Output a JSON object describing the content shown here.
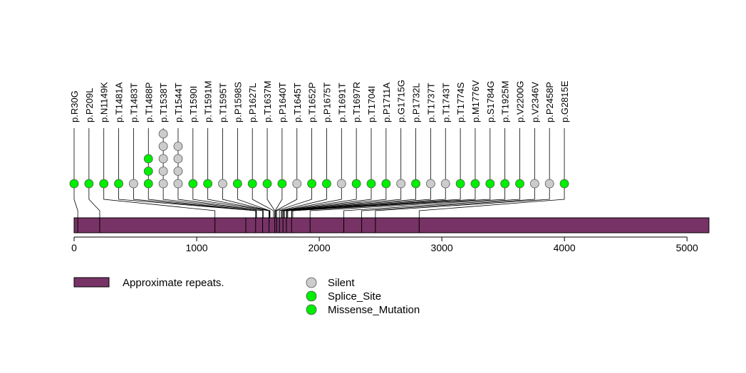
{
  "chart_data": {
    "type": "lollipop",
    "protein_length": 5179,
    "xlim": [
      0,
      5179
    ],
    "x_ticks": [
      0,
      1000,
      2000,
      3000,
      4000,
      5000
    ],
    "domain": {
      "name": "Approximate repeats.",
      "start": 0,
      "end": 5179,
      "color": "#773366"
    },
    "segment_boundaries": [
      30,
      209,
      1149,
      1401,
      1481,
      1538,
      1590,
      1637,
      1652,
      1675,
      1704,
      1732,
      1774,
      1925,
      2200,
      2346,
      2458,
      2815
    ],
    "mutation_types": [
      {
        "name": "Silent",
        "color": "#cccccc"
      },
      {
        "name": "Splice_Site",
        "color": "#00ee00"
      },
      {
        "name": "Missense_Mutation",
        "color": "#00ee00"
      }
    ],
    "mutations": [
      {
        "label": "p.R30G",
        "position": 30,
        "stack": [
          "Missense_Mutation"
        ]
      },
      {
        "label": "p.P209L",
        "position": 209,
        "stack": [
          "Missense_Mutation"
        ]
      },
      {
        "label": "p.N1149K",
        "position": 1149,
        "stack": [
          "Missense_Mutation"
        ]
      },
      {
        "label": "p.T1481A",
        "position": 1481,
        "stack": [
          "Missense_Mutation"
        ]
      },
      {
        "label": "p.T1483T",
        "position": 1483,
        "stack": [
          "Silent"
        ]
      },
      {
        "label": "p.T1488P",
        "position": 1488,
        "stack": [
          "Missense_Mutation",
          "Missense_Mutation",
          "Missense_Mutation"
        ]
      },
      {
        "label": "p.T1538T",
        "position": 1538,
        "stack": [
          "Silent",
          "Silent",
          "Silent",
          "Silent",
          "Silent"
        ]
      },
      {
        "label": "p.T1544T",
        "position": 1544,
        "stack": [
          "Silent",
          "Silent",
          "Silent",
          "Silent"
        ]
      },
      {
        "label": "p.T1590I",
        "position": 1590,
        "stack": [
          "Missense_Mutation"
        ]
      },
      {
        "label": "p.T1591M",
        "position": 1591,
        "stack": [
          "Missense_Mutation"
        ]
      },
      {
        "label": "p.T1595T",
        "position": 1595,
        "stack": [
          "Silent"
        ]
      },
      {
        "label": "p.P1598S",
        "position": 1598,
        "stack": [
          "Missense_Mutation"
        ]
      },
      {
        "label": "p.P1627L",
        "position": 1627,
        "stack": [
          "Missense_Mutation"
        ]
      },
      {
        "label": "p.T1637M",
        "position": 1637,
        "stack": [
          "Missense_Mutation"
        ]
      },
      {
        "label": "p.P1640T",
        "position": 1640,
        "stack": [
          "Missense_Mutation"
        ]
      },
      {
        "label": "p.T1645T",
        "position": 1645,
        "stack": [
          "Silent"
        ]
      },
      {
        "label": "p.T1652P",
        "position": 1652,
        "stack": [
          "Missense_Mutation"
        ]
      },
      {
        "label": "p.P1675T",
        "position": 1675,
        "stack": [
          "Missense_Mutation"
        ]
      },
      {
        "label": "p.T1691T",
        "position": 1691,
        "stack": [
          "Silent"
        ]
      },
      {
        "label": "p.T1697R",
        "position": 1697,
        "stack": [
          "Missense_Mutation"
        ]
      },
      {
        "label": "p.T1704I",
        "position": 1704,
        "stack": [
          "Missense_Mutation"
        ]
      },
      {
        "label": "p.P1711A",
        "position": 1711,
        "stack": [
          "Missense_Mutation"
        ]
      },
      {
        "label": "p.G1715G",
        "position": 1715,
        "stack": [
          "Silent"
        ]
      },
      {
        "label": "p.P1732L",
        "position": 1732,
        "stack": [
          "Missense_Mutation"
        ]
      },
      {
        "label": "p.T1737T",
        "position": 1737,
        "stack": [
          "Silent"
        ]
      },
      {
        "label": "p.T1743T",
        "position": 1743,
        "stack": [
          "Silent"
        ]
      },
      {
        "label": "p.T1774S",
        "position": 1774,
        "stack": [
          "Missense_Mutation"
        ]
      },
      {
        "label": "p.M1776V",
        "position": 1776,
        "stack": [
          "Missense_Mutation"
        ]
      },
      {
        "label": "p.S1784G",
        "position": 1784,
        "stack": [
          "Missense_Mutation"
        ]
      },
      {
        "label": "p.T1925M",
        "position": 1925,
        "stack": [
          "Missense_Mutation"
        ]
      },
      {
        "label": "p.V2200G",
        "position": 2200,
        "stack": [
          "Missense_Mutation"
        ]
      },
      {
        "label": "p.V2346V",
        "position": 2346,
        "stack": [
          "Silent"
        ]
      },
      {
        "label": "p.P2458P",
        "position": 2458,
        "stack": [
          "Silent"
        ]
      },
      {
        "label": "p.G2815E",
        "position": 2815,
        "stack": [
          "Missense_Mutation"
        ]
      }
    ]
  }
}
